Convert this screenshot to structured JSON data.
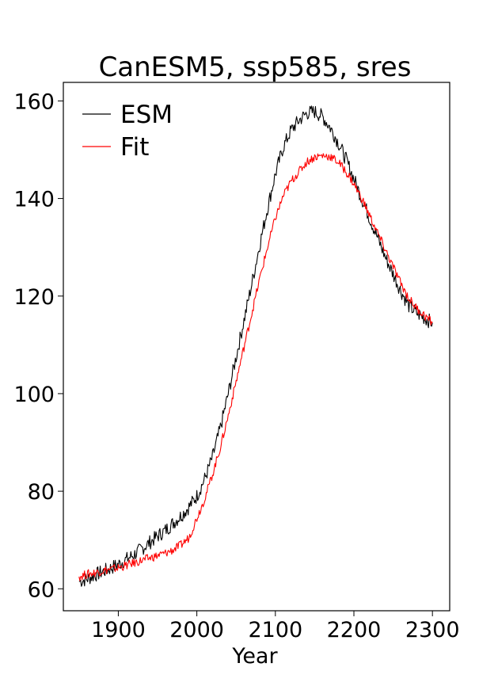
{
  "chart_data": {
    "type": "line",
    "title": "CanESM5, ssp585, sres",
    "xlabel": "Year",
    "ylabel": "",
    "xlim": [
      1830,
      2322
    ],
    "ylim": [
      55.5,
      163.8
    ],
    "xticks": [
      1900,
      2000,
      2100,
      2200,
      2300
    ],
    "yticks": [
      60,
      80,
      100,
      120,
      140,
      160
    ],
    "xtick_labels": [
      "1900",
      "2000",
      "2100",
      "2200",
      "2300"
    ],
    "ytick_labels": [
      "60",
      "80",
      "100",
      "120",
      "140",
      "160"
    ],
    "grid": false,
    "legend_placement": "top-left",
    "series": [
      {
        "name": "ESM",
        "color": "#000000",
        "x": [
          1850,
          1860,
          1870,
          1880,
          1890,
          1900,
          1910,
          1920,
          1930,
          1940,
          1950,
          1960,
          1970,
          1980,
          1990,
          2000,
          2010,
          2020,
          2030,
          2040,
          2050,
          2060,
          2070,
          2080,
          2090,
          2100,
          2110,
          2120,
          2130,
          2140,
          2150,
          2160,
          2170,
          2180,
          2190,
          2200,
          2210,
          2220,
          2230,
          2240,
          2250,
          2260,
          2270,
          2280,
          2290,
          2300
        ],
        "y": [
          61.5,
          62.0,
          62.8,
          63.5,
          64.2,
          65.0,
          66.0,
          67.0,
          68.2,
          69.5,
          70.8,
          72.0,
          73.5,
          75.0,
          76.8,
          79.0,
          82.5,
          87.0,
          93.0,
          100.0,
          107.5,
          115.0,
          122.5,
          130.5,
          138.0,
          145.0,
          150.5,
          154.0,
          156.0,
          157.5,
          157.8,
          156.8,
          154.5,
          151.5,
          148.0,
          144.0,
          140.0,
          136.0,
          132.0,
          128.0,
          124.5,
          121.0,
          118.0,
          116.5,
          115.5,
          114.5
        ]
      },
      {
        "name": "Fit",
        "color": "#ff0000",
        "x": [
          1850,
          1860,
          1870,
          1880,
          1890,
          1900,
          1910,
          1920,
          1930,
          1940,
          1950,
          1960,
          1970,
          1980,
          1990,
          2000,
          2010,
          2020,
          2030,
          2040,
          2050,
          2060,
          2070,
          2080,
          2090,
          2100,
          2110,
          2120,
          2130,
          2140,
          2150,
          2160,
          2170,
          2180,
          2190,
          2200,
          2210,
          2220,
          2230,
          2240,
          2250,
          2260,
          2270,
          2280,
          2290,
          2300
        ],
        "y": [
          62.5,
          63.0,
          63.3,
          63.7,
          64.0,
          64.3,
          64.8,
          65.3,
          65.8,
          66.3,
          66.8,
          67.3,
          68.0,
          69.0,
          70.5,
          74.5,
          78.5,
          83.5,
          89.0,
          95.5,
          102.5,
          109.5,
          116.5,
          123.5,
          130.0,
          136.0,
          140.5,
          143.5,
          145.5,
          147.5,
          148.5,
          148.8,
          148.6,
          147.5,
          145.5,
          143.0,
          140.0,
          136.5,
          133.0,
          129.5,
          126.0,
          122.5,
          119.5,
          117.5,
          116.0,
          114.5
        ]
      }
    ]
  }
}
